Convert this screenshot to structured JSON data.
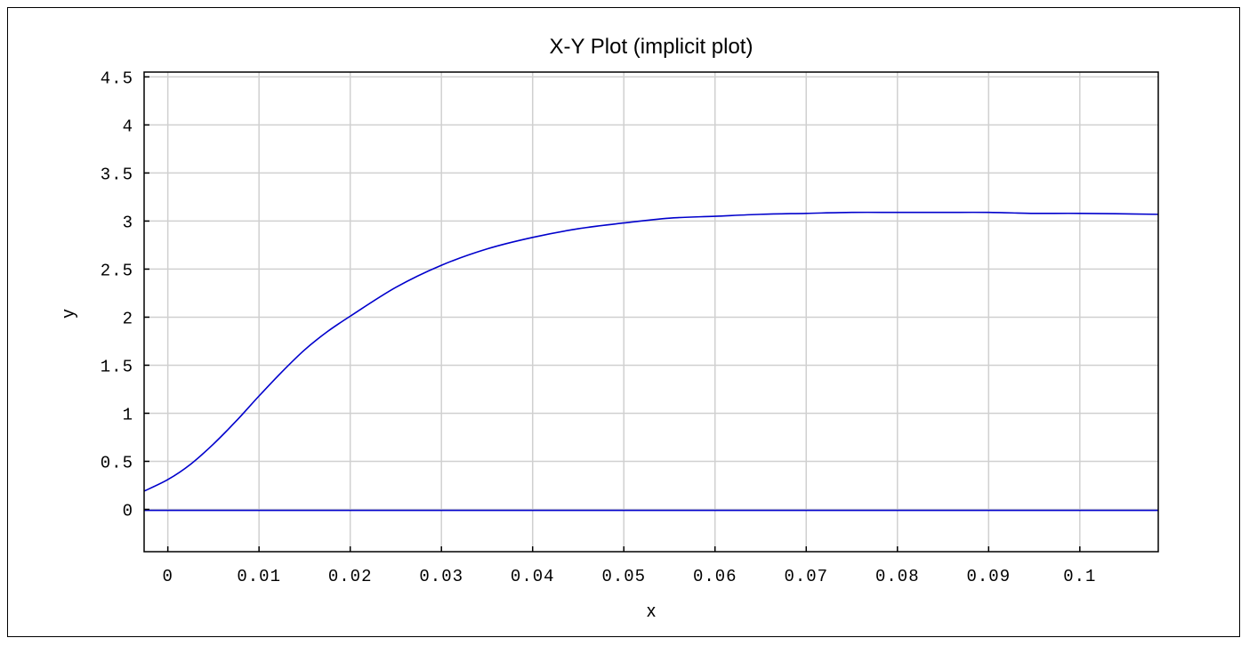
{
  "chart_data": {
    "type": "line",
    "title": "X-Y Plot (implicit plot)",
    "xlabel": "x",
    "ylabel": "y",
    "xlim": [
      -0.0026,
      0.1086
    ],
    "ylim": [
      -0.44,
      4.55
    ],
    "grid": true,
    "x_ticks": [
      {
        "value": 0,
        "label": "0"
      },
      {
        "value": 0.01,
        "label": "0.01"
      },
      {
        "value": 0.02,
        "label": "0.02"
      },
      {
        "value": 0.03,
        "label": "0.03"
      },
      {
        "value": 0.04,
        "label": "0.04"
      },
      {
        "value": 0.05,
        "label": "0.05"
      },
      {
        "value": 0.06,
        "label": "0.06"
      },
      {
        "value": 0.07,
        "label": "0.07"
      },
      {
        "value": 0.08,
        "label": "0.08"
      },
      {
        "value": 0.09,
        "label": "0.09"
      },
      {
        "value": 0.1,
        "label": "0.1"
      }
    ],
    "y_ticks": [
      {
        "value": 0,
        "label": "0"
      },
      {
        "value": 0.5,
        "label": "0.5"
      },
      {
        "value": 1,
        "label": "1"
      },
      {
        "value": 1.5,
        "label": "1.5"
      },
      {
        "value": 2,
        "label": "2"
      },
      {
        "value": 2.5,
        "label": "2.5"
      },
      {
        "value": 3,
        "label": "3"
      },
      {
        "value": 3.5,
        "label": "3.5"
      },
      {
        "value": 4,
        "label": "4"
      },
      {
        "value": 4.5,
        "label": "4.5"
      }
    ],
    "series": [
      {
        "color": "#0000cc",
        "x": [
          -0.0026,
          0.0,
          0.0025,
          0.005,
          0.0075,
          0.01,
          0.0125,
          0.015,
          0.0175,
          0.02,
          0.025,
          0.03,
          0.035,
          0.04,
          0.045,
          0.05,
          0.055,
          0.06,
          0.065,
          0.07,
          0.075,
          0.08,
          0.085,
          0.09,
          0.095,
          0.1,
          0.1086
        ],
        "y": [
          0.19,
          0.31,
          0.47,
          0.68,
          0.92,
          1.18,
          1.43,
          1.66,
          1.85,
          2.01,
          2.31,
          2.54,
          2.71,
          2.83,
          2.92,
          2.98,
          3.03,
          3.05,
          3.07,
          3.08,
          3.09,
          3.09,
          3.09,
          3.09,
          3.08,
          3.08,
          3.07
        ]
      },
      {
        "color": "#0000cc",
        "x": [
          -0.0026,
          0.1086
        ],
        "y": [
          -0.01,
          -0.01
        ]
      }
    ]
  }
}
